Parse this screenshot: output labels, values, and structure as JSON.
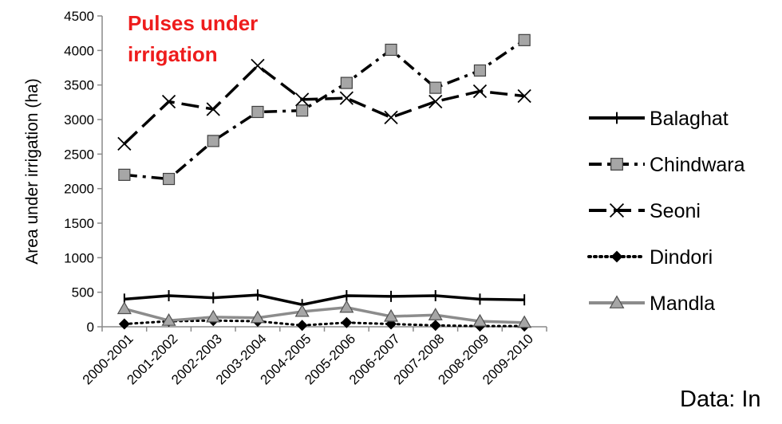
{
  "chart_data": {
    "type": "line",
    "title_lines": [
      "Pulses under",
      "irrigation"
    ],
    "title_color": "#ee1c1c",
    "ylabel": "Area under irrigation (ha)",
    "xlabel": "",
    "ylim": [
      0,
      4500
    ],
    "yticks": [
      "0",
      "500",
      "1000",
      "1500",
      "2000",
      "2500",
      "3000",
      "3500",
      "4000",
      "4500"
    ],
    "categories": [
      "2000-2001",
      "2001-2002",
      "2002-2003",
      "2003-2004",
      "2004-2005",
      "2005-2006",
      "2006-2007",
      "2007-2008",
      "2008-2009",
      "2009-2010"
    ],
    "grid": false,
    "legend_position": "right",
    "series": [
      {
        "name": "Balaghat",
        "marker": "plus",
        "line": "solid",
        "color": "#000000",
        "values": [
          400,
          450,
          420,
          460,
          320,
          450,
          440,
          450,
          400,
          390
        ]
      },
      {
        "name": "Chindwara",
        "marker": "square",
        "line": "dashdot",
        "color": "#000000",
        "marker_fill": "#a6a6a6",
        "values": [
          2200,
          2140,
          2690,
          3110,
          3130,
          3530,
          4010,
          3460,
          3710,
          4150
        ]
      },
      {
        "name": "Seoni",
        "marker": "x",
        "line": "longdash",
        "color": "#000000",
        "values": [
          2650,
          3260,
          3150,
          3780,
          3290,
          3310,
          3030,
          3260,
          3410,
          3340
        ]
      },
      {
        "name": "Dindori",
        "marker": "diamond",
        "line": "dotted",
        "color": "#000000",
        "values": [
          40,
          80,
          90,
          80,
          20,
          60,
          40,
          20,
          10,
          10
        ]
      },
      {
        "name": "Mandla",
        "marker": "triangle",
        "line": "solid",
        "color": "#8c8c8c",
        "marker_fill": "#a6a6a6",
        "values": [
          260,
          90,
          140,
          130,
          220,
          280,
          150,
          170,
          80,
          60
        ]
      }
    ]
  },
  "footer": {
    "note": "Data: In"
  }
}
